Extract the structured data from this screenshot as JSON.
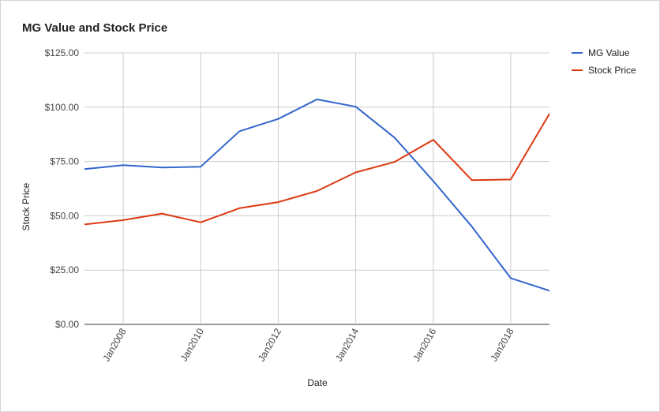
{
  "chart_data": {
    "type": "line",
    "title": "MG Value and Stock Price",
    "xlabel": "Date",
    "ylabel": "Stock Price",
    "x": [
      "Jan2007",
      "Jan2008",
      "Jan2009",
      "Jan2010",
      "Jan2011",
      "Jan2012",
      "Jan2013",
      "Jan2014",
      "Jan2015",
      "Jan2016",
      "Jan2017",
      "Jan2018",
      "Jan2019"
    ],
    "xticks": [
      "Jan2008",
      "Jan2010",
      "Jan2012",
      "Jan2014",
      "Jan2016",
      "Jan2018"
    ],
    "yticks": [
      "$0.00",
      "$25.00",
      "$50.00",
      "$75.00",
      "$100.00",
      "$125.00"
    ],
    "ylim": [
      0,
      125
    ],
    "grid": true,
    "legend": "right",
    "series": [
      {
        "name": "MG Value",
        "color": "#3366cc",
        "values": [
          71.5,
          73.3,
          72.2,
          72.6,
          88.9,
          94.6,
          103.6,
          100.2,
          86.0,
          66.0,
          45.0,
          21.3,
          15.5
        ]
      },
      {
        "name": "Stock Price",
        "color": "#dc3912",
        "values": [
          46.0,
          48.0,
          51.0,
          47.0,
          53.5,
          56.3,
          61.4,
          70.0,
          74.8,
          85.0,
          66.4,
          66.7,
          97.0
        ]
      }
    ]
  }
}
